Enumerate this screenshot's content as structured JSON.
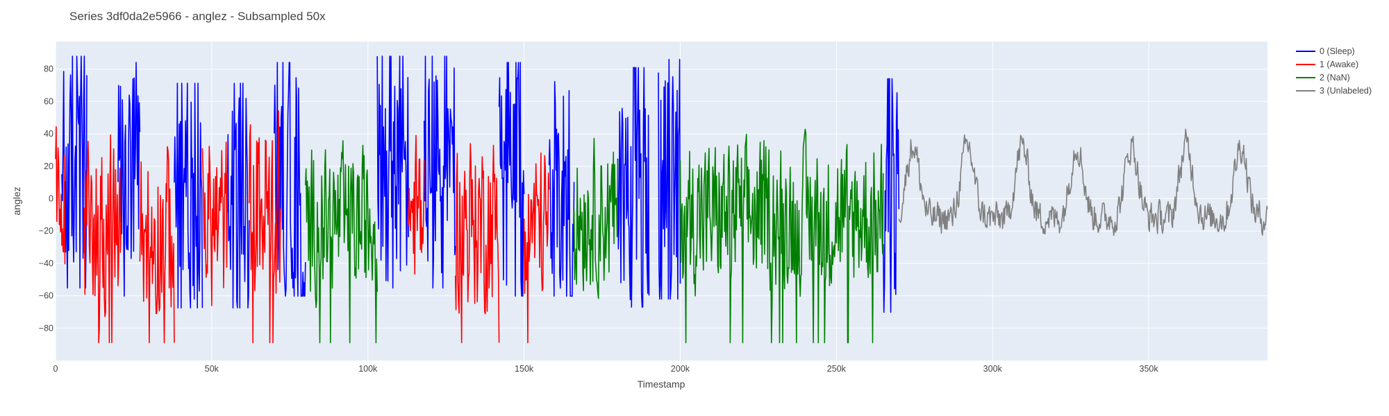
{
  "chart_data": {
    "type": "line",
    "title": "Series 3df0da2e5966 - anglez - Subsampled 50x",
    "xlabel": "Timestamp",
    "ylabel": "anglez",
    "xlim": [
      0,
      388000
    ],
    "ylim": [
      -100,
      97
    ],
    "x_ticks": [
      {
        "value": 0,
        "label": "0"
      },
      {
        "value": 50000,
        "label": "50k"
      },
      {
        "value": 100000,
        "label": "100k"
      },
      {
        "value": 150000,
        "label": "150k"
      },
      {
        "value": 200000,
        "label": "200k"
      },
      {
        "value": 250000,
        "label": "250k"
      },
      {
        "value": 300000,
        "label": "300k"
      },
      {
        "value": 350000,
        "label": "350k"
      }
    ],
    "y_ticks": [
      {
        "value": 80,
        "label": "80"
      },
      {
        "value": 60,
        "label": "60"
      },
      {
        "value": 40,
        "label": "40"
      },
      {
        "value": 20,
        "label": "20"
      },
      {
        "value": 0,
        "label": "0"
      },
      {
        "value": -20,
        "label": "−20"
      },
      {
        "value": -40,
        "label": "−40"
      },
      {
        "value": -60,
        "label": "−60"
      },
      {
        "value": -80,
        "label": "−80"
      }
    ],
    "grid": true,
    "legend_position": "top-right",
    "colors": {
      "plot_background": "#E5ECF6",
      "grid": "#ffffff"
    },
    "series": [
      {
        "name": "0 (Sleep)",
        "color": "#0000ff",
        "segments": [
          {
            "x_start": 2000,
            "x_end": 10000,
            "amplitude": 78,
            "center": 15,
            "sleep_like": true
          },
          {
            "x_start": 20000,
            "x_end": 27000,
            "amplitude": 78,
            "center": 10,
            "sleep_like": true
          },
          {
            "x_start": 38000,
            "x_end": 47000,
            "amplitude": 75,
            "center": 0,
            "sleep_like": true
          },
          {
            "x_start": 55000,
            "x_end": 62000,
            "amplitude": 75,
            "center": 0,
            "sleep_like": true
          },
          {
            "x_start": 70000,
            "x_end": 80000,
            "amplitude": 78,
            "center": 10,
            "sleep_like": true
          },
          {
            "x_start": 103000,
            "x_end": 113000,
            "amplitude": 78,
            "center": 15,
            "sleep_like": true
          },
          {
            "x_start": 118000,
            "x_end": 128000,
            "amplitude": 78,
            "center": 15,
            "sleep_like": true
          },
          {
            "x_start": 142000,
            "x_end": 150000,
            "amplitude": 78,
            "center": 10,
            "sleep_like": true
          },
          {
            "x_start": 158000,
            "x_end": 166000,
            "amplitude": 78,
            "center": 10,
            "sleep_like": true
          },
          {
            "x_start": 180000,
            "x_end": 190000,
            "amplitude": 80,
            "center": 5,
            "sleep_like": true
          },
          {
            "x_start": 193000,
            "x_end": 200000,
            "amplitude": 80,
            "center": 10,
            "sleep_like": true
          },
          {
            "x_start": 265000,
            "x_end": 270000,
            "amplitude": 78,
            "center": 0,
            "sleep_like": true
          }
        ]
      },
      {
        "name": "1 (Awake)",
        "color": "#ff0000",
        "segments": [
          {
            "x_start": 0,
            "x_end": 3000,
            "amplitude": 65,
            "center": -10
          },
          {
            "x_start": 9000,
            "x_end": 21000,
            "amplitude": 65,
            "center": -15
          },
          {
            "x_start": 27000,
            "x_end": 38000,
            "amplitude": 65,
            "center": -20
          },
          {
            "x_start": 47000,
            "x_end": 55000,
            "amplitude": 65,
            "center": -15
          },
          {
            "x_start": 62000,
            "x_end": 72000,
            "amplitude": 70,
            "center": -5
          },
          {
            "x_start": 113000,
            "x_end": 118000,
            "amplitude": 60,
            "center": -10
          },
          {
            "x_start": 128000,
            "x_end": 142000,
            "amplitude": 65,
            "center": -15
          },
          {
            "x_start": 150000,
            "x_end": 158000,
            "amplitude": 60,
            "center": -15
          }
        ]
      },
      {
        "name": "2 (NaN)",
        "color": "#008000",
        "segments": [
          {
            "x_start": 80000,
            "x_end": 103000,
            "amplitude": 55,
            "center": -15
          },
          {
            "x_start": 166000,
            "x_end": 180000,
            "amplitude": 55,
            "center": -10
          },
          {
            "x_start": 200000,
            "x_end": 265000,
            "amplitude": 55,
            "center": -10
          }
        ]
      },
      {
        "name": "3 (Unlabeled)",
        "color": "#808080",
        "segments": [
          {
            "x_start": 270000,
            "x_end": 388000,
            "amplitude": 30,
            "center": -12,
            "periodic": true,
            "period": 17500
          }
        ]
      }
    ]
  }
}
